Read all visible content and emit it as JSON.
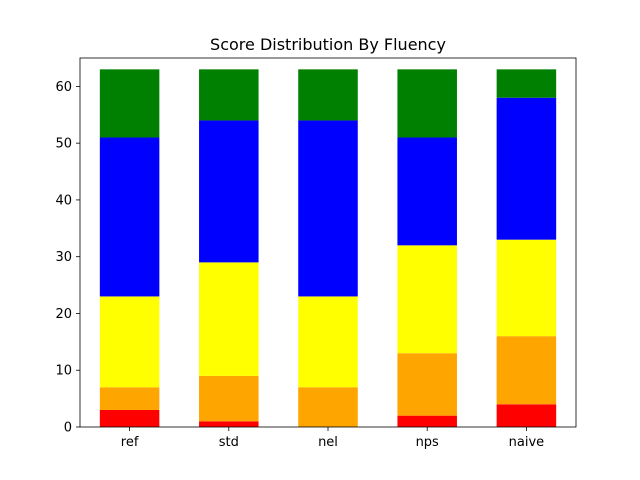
{
  "chart_data": {
    "type": "bar",
    "stacked": true,
    "title": "Score Distribution By Fluency",
    "xlabel": "",
    "ylabel": "",
    "categories": [
      "ref",
      "std",
      "nel",
      "nps",
      "naive"
    ],
    "ylim": [
      0,
      65
    ],
    "yticks": [
      0,
      10,
      20,
      30,
      40,
      50,
      60
    ],
    "grid": false,
    "series": [
      {
        "color": "#ff0000",
        "values": [
          3,
          1,
          0,
          2,
          4
        ]
      },
      {
        "color": "#ffa500",
        "values": [
          4,
          8,
          7,
          11,
          12
        ]
      },
      {
        "color": "#ffff00",
        "values": [
          16,
          20,
          16,
          19,
          17
        ]
      },
      {
        "color": "#0000ff",
        "values": [
          28,
          25,
          31,
          19,
          25
        ]
      },
      {
        "color": "#008000",
        "values": [
          12,
          9,
          9,
          12,
          5
        ]
      }
    ]
  }
}
